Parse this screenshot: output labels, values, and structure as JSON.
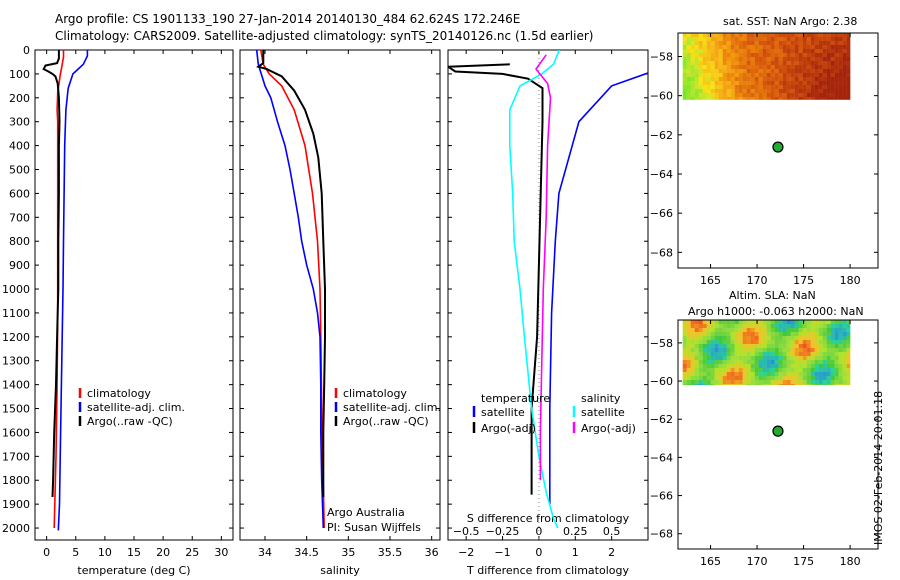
{
  "header": {
    "line1": "Argo profile: CS 1901133_190 27-Jan-2014 20140130_484 62.624S 172.246E",
    "line2": "Climatology: CARS2009. Satellite-adjusted climatology: synTS_20140126.nc (1.5d earlier)"
  },
  "stamp": "IMOS 02-Feb-2014 20:01:18",
  "colors": {
    "climatology": "#ff0000",
    "satellite": "#0000ff",
    "argo": "#000000",
    "temp_diff": "#00ffff",
    "sal_diff": "#ff00ff"
  },
  "chart_data": [
    {
      "type": "line",
      "xlabel": "temperature (deg C)",
      "xlim": [
        -2,
        32
      ],
      "xticks": [
        0,
        5,
        10,
        15,
        20,
        25,
        30
      ],
      "ylim": [
        0,
        2050
      ],
      "yticks": [
        0,
        100,
        200,
        300,
        400,
        500,
        600,
        700,
        800,
        900,
        1000,
        1100,
        1200,
        1300,
        1400,
        1500,
        1600,
        1700,
        1800,
        1900,
        2000
      ],
      "legend": [
        "climatology",
        "satellite-adj. clim.",
        "Argo(..raw -QC)"
      ],
      "legend_position": "center",
      "series": [
        {
          "name": "climatology",
          "color": "#ff0000",
          "points": [
            [
              2.9,
              0
            ],
            [
              2.9,
              30
            ],
            [
              2.6,
              70
            ],
            [
              2.3,
              110
            ],
            [
              1.9,
              180
            ],
            [
              1.8,
              250
            ],
            [
              1.9,
              300
            ],
            [
              1.9,
              500
            ],
            [
              1.9,
              800
            ],
            [
              1.9,
              1100
            ],
            [
              1.8,
              1400
            ],
            [
              1.6,
              1700
            ],
            [
              1.3,
              2000
            ]
          ]
        },
        {
          "name": "satellite-adj. clim.",
          "color": "#0000ff",
          "points": [
            [
              7.0,
              0
            ],
            [
              7.0,
              25
            ],
            [
              6.3,
              60
            ],
            [
              5.4,
              80
            ],
            [
              4.5,
              100
            ],
            [
              3.7,
              160
            ],
            [
              3.3,
              250
            ],
            [
              3.1,
              400
            ],
            [
              3.0,
              600
            ],
            [
              2.9,
              800
            ],
            [
              2.8,
              1000
            ],
            [
              2.6,
              1300
            ],
            [
              2.4,
              1600
            ],
            [
              2.2,
              1900
            ],
            [
              2.0,
              2010
            ]
          ]
        },
        {
          "name": "Argo(..raw -QC)",
          "color": "#000000",
          "points": [
            [
              2.1,
              0
            ],
            [
              2.1,
              35
            ],
            [
              1.8,
              55
            ],
            [
              -0.2,
              65
            ],
            [
              -0.5,
              80
            ],
            [
              0.3,
              90
            ],
            [
              1.0,
              100
            ],
            [
              1.5,
              110
            ],
            [
              1.9,
              140
            ],
            [
              2.1,
              200
            ],
            [
              2.2,
              300
            ],
            [
              2.1,
              400
            ],
            [
              2.1,
              600
            ],
            [
              2.0,
              800
            ],
            [
              2.0,
              1000
            ],
            [
              1.8,
              1200
            ],
            [
              1.6,
              1400
            ],
            [
              1.3,
              1600
            ],
            [
              1.1,
              1800
            ],
            [
              1.0,
              1870
            ]
          ]
        }
      ]
    },
    {
      "type": "line",
      "xlabel": "salinity",
      "xlim": [
        33.7,
        36.1
      ],
      "xticks": [
        34,
        34.5,
        35,
        35.5,
        36
      ],
      "ylim": [
        0,
        2050
      ],
      "legend": [
        "climatology",
        "satellite-adj. clim.",
        "Argo(..raw -QC)"
      ],
      "legend_position": "center",
      "annotations": [
        "Argo Australia",
        "PI: Susan Wijffels"
      ],
      "series": [
        {
          "name": "climatology",
          "color": "#ff0000",
          "points": [
            [
              33.95,
              0
            ],
            [
              33.98,
              60
            ],
            [
              34.05,
              100
            ],
            [
              34.2,
              150
            ],
            [
              34.35,
              250
            ],
            [
              34.48,
              400
            ],
            [
              34.57,
              600
            ],
            [
              34.63,
              800
            ],
            [
              34.66,
              1000
            ],
            [
              34.67,
              1200
            ],
            [
              34.68,
              1500
            ],
            [
              34.71,
              2000
            ]
          ]
        },
        {
          "name": "satellite-adj. clim.",
          "color": "#0000ff",
          "points": [
            [
              33.9,
              0
            ],
            [
              33.92,
              60
            ],
            [
              34.0,
              150
            ],
            [
              34.07,
              200
            ],
            [
              34.15,
              300
            ],
            [
              34.24,
              400
            ],
            [
              34.3,
              500
            ],
            [
              34.35,
              600
            ],
            [
              34.4,
              700
            ],
            [
              34.44,
              800
            ],
            [
              34.5,
              900
            ],
            [
              34.58,
              1000
            ],
            [
              34.63,
              1100
            ],
            [
              34.66,
              1200
            ],
            [
              34.67,
              1400
            ],
            [
              34.67,
              1600
            ],
            [
              34.68,
              1800
            ],
            [
              34.7,
              2000
            ]
          ]
        },
        {
          "name": "Argo(..raw -QC)",
          "color": "#000000",
          "points": [
            [
              33.98,
              0
            ],
            [
              33.98,
              55
            ],
            [
              33.92,
              70
            ],
            [
              34.02,
              80
            ],
            [
              34.2,
              110
            ],
            [
              34.35,
              170
            ],
            [
              34.48,
              250
            ],
            [
              34.58,
              350
            ],
            [
              34.64,
              450
            ],
            [
              34.68,
              600
            ],
            [
              34.7,
              800
            ],
            [
              34.72,
              1000
            ],
            [
              34.72,
              1200
            ],
            [
              34.71,
              1400
            ],
            [
              34.7,
              1600
            ],
            [
              34.7,
              1870
            ]
          ]
        }
      ]
    },
    {
      "type": "line",
      "xlabel": "T difference from climatology",
      "xlabel_top": "S difference from climatology",
      "xlim": [
        -2.5,
        3
      ],
      "xticks": [
        -2,
        -1,
        0,
        1,
        2
      ],
      "xlim_top": [
        -0.625,
        0.75
      ],
      "xticks_top": [
        -0.5,
        -0.25,
        0,
        0.25,
        0.5
      ],
      "ylim": [
        0,
        2050
      ],
      "legend_left": {
        "title": "temperature",
        "entries": [
          "satellite",
          "Argo(-adj)"
        ]
      },
      "legend_right": {
        "title": "salinity",
        "entries": [
          "satellite",
          "Argo(-adj)"
        ]
      },
      "series": [
        {
          "name": "temperature satellite",
          "color": "#0000ff",
          "axis": "T",
          "points": [
            [
              5.0,
              20
            ],
            [
              3.4,
              75
            ],
            [
              2.0,
              150
            ],
            [
              1.1,
              300
            ],
            [
              0.55,
              600
            ],
            [
              0.45,
              800
            ],
            [
              0.35,
              1100
            ],
            [
              0.3,
              1500
            ],
            [
              0.3,
              1900
            ]
          ]
        },
        {
          "name": "temperature Argo(-adj)",
          "color": "#000000",
          "axis": "T",
          "points": [
            [
              -0.8,
              60
            ],
            [
              -2.5,
              70
            ],
            [
              -2.3,
              90
            ],
            [
              -1.0,
              100
            ],
            [
              -0.3,
              120
            ],
            [
              0.1,
              160
            ],
            [
              0.1,
              300
            ],
            [
              0.05,
              600
            ],
            [
              0.0,
              900
            ],
            [
              -0.05,
              1200
            ],
            [
              -0.2,
              1500
            ],
            [
              -0.2,
              1860
            ]
          ]
        },
        {
          "name": "salinity satellite",
          "color": "#00ffff",
          "axis": "S",
          "points": [
            [
              0.14,
              0
            ],
            [
              0.1,
              60
            ],
            [
              0.02,
              100
            ],
            [
              -0.13,
              150
            ],
            [
              -0.2,
              250
            ],
            [
              -0.2,
              400
            ],
            [
              -0.18,
              600
            ],
            [
              -0.17,
              800
            ],
            [
              -0.13,
              1000
            ],
            [
              -0.1,
              1200
            ],
            [
              -0.05,
              1500
            ],
            [
              0,
              1700
            ],
            [
              0.05,
              1850
            ],
            [
              0.1,
              1960
            ],
            [
              0.13,
              2000
            ]
          ]
        },
        {
          "name": "salinity Argo(-adj)",
          "color": "#ff00ff",
          "axis": "S",
          "points": [
            [
              0.05,
              20
            ],
            [
              -0.02,
              80
            ],
            [
              0.06,
              140
            ],
            [
              0.08,
              200
            ],
            [
              0.06,
              400
            ],
            [
              0.05,
              700
            ],
            [
              0.03,
              1000
            ],
            [
              0.02,
              1300
            ],
            [
              0.01,
              1600
            ],
            [
              0.01,
              1800
            ]
          ]
        }
      ]
    },
    {
      "type": "heatmap",
      "title": "sat. SST: NaN Argo: 2.38",
      "xlim": [
        161.5,
        183
      ],
      "xticks": [
        165,
        170,
        175,
        180
      ],
      "ylim": [
        -68.8,
        -56.8
      ],
      "yticks": [
        -58,
        -60,
        -62,
        -64,
        -66,
        -68
      ],
      "data_extent": {
        "lon": [
          162,
          180
        ],
        "lat": [
          -60.2,
          -56.8
        ]
      },
      "marker": {
        "lon": 172.246,
        "lat": -62.624
      }
    },
    {
      "type": "heatmap",
      "title": "Altim. SLA: NaN",
      "subtitle": "Argo h1000: -0.063 h2000: NaN",
      "xlim": [
        161.5,
        183
      ],
      "xticks": [
        165,
        170,
        175,
        180
      ],
      "ylim": [
        -68.8,
        -56.8
      ],
      "yticks": [
        -58,
        -60,
        -62,
        -64,
        -66,
        -68
      ],
      "data_extent": {
        "lon": [
          162,
          180
        ],
        "lat": [
          -60.2,
          -56.8
        ]
      },
      "marker": {
        "lon": 172.246,
        "lat": -62.624
      }
    }
  ]
}
